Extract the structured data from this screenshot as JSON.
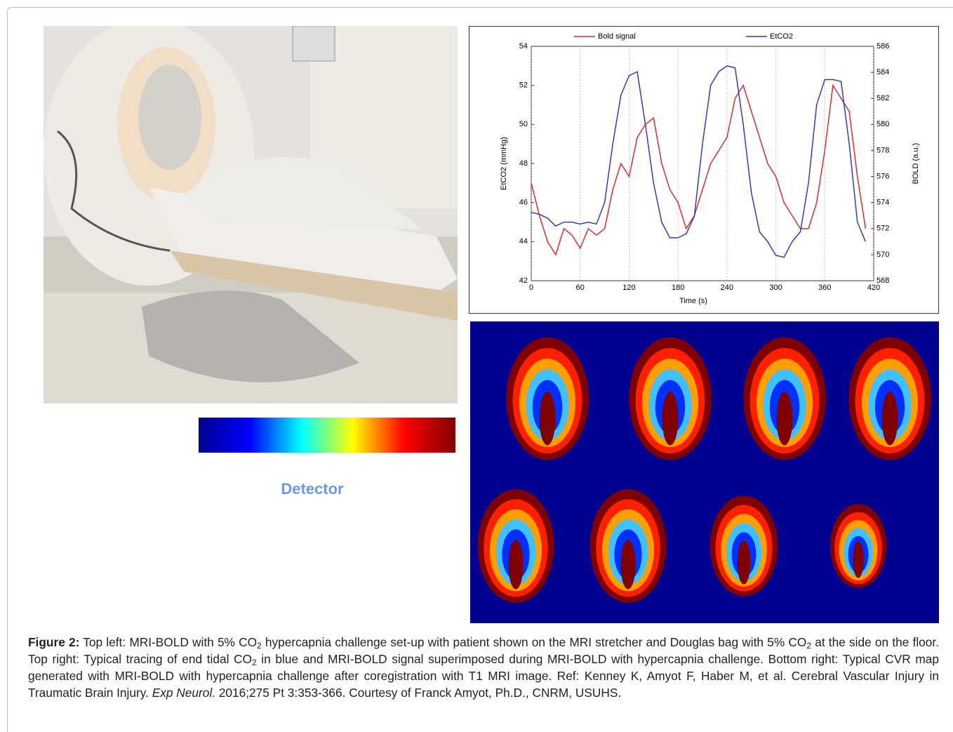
{
  "chart_data": {
    "type": "line",
    "legend_position": "top",
    "x_label": "Time (s)",
    "y_label": "EtCO2 (mmHg)",
    "y2_label": "BOLD (a.u.)",
    "x": [
      0,
      10,
      20,
      30,
      40,
      50,
      60,
      70,
      80,
      90,
      100,
      110,
      120,
      130,
      140,
      150,
      160,
      170,
      180,
      190,
      200,
      210,
      220,
      230,
      240,
      250,
      260,
      270,
      280,
      290,
      300,
      310,
      320,
      330,
      340,
      350,
      360,
      370,
      380,
      390,
      400,
      410
    ],
    "series": [
      {
        "name": "Bold signal",
        "color": "#d03030",
        "axis": "y2",
        "values": [
          575.5,
          573,
          571,
          570,
          572,
          571.5,
          570.5,
          572,
          571.5,
          572,
          575,
          577,
          576,
          579,
          580,
          580.5,
          577,
          575,
          574,
          572,
          573,
          575,
          577,
          578,
          579,
          582,
          583,
          581,
          579,
          577,
          576,
          574,
          573,
          572,
          572,
          574,
          578,
          583,
          582,
          581,
          576,
          572
        ]
      },
      {
        "name": "EtCO2",
        "color": "#3a3ab0",
        "values": [
          45.5,
          45.4,
          45.2,
          44.8,
          45,
          45,
          44.9,
          45,
          44.9,
          46,
          49,
          51.5,
          52.5,
          52.7,
          50,
          47,
          45,
          44.2,
          44.2,
          44.4,
          45.3,
          49,
          52,
          52.7,
          53,
          52.9,
          50,
          46.5,
          44.5,
          44,
          43.3,
          43.2,
          44,
          44.5,
          47,
          51,
          52.3,
          52.3,
          52.2,
          49,
          45,
          44
        ]
      }
    ],
    "xlim": [
      0,
      420
    ],
    "xticks": [
      0,
      60,
      120,
      180,
      240,
      300,
      360,
      420
    ],
    "xgrid": true,
    "ylim": [
      42,
      54
    ],
    "yticks": [
      42,
      44,
      46,
      48,
      50,
      52,
      54
    ],
    "y2lim": [
      568,
      586
    ],
    "y2ticks": [
      568,
      570,
      572,
      574,
      576,
      578,
      580,
      582,
      584,
      586
    ]
  },
  "colorbar_label": "Detector",
  "caption": {
    "label": "Figure 2:",
    "parts": [
      " Top left: MRI-BOLD with 5% CO",
      "2",
      " hypercapnia challenge set-up with patient shown on the MRI stretcher and Douglas bag with 5% CO",
      "2",
      " at the side on the floor. Top right: Typical tracing of end tidal CO",
      "2",
      " in blue and MRI-BOLD signal superimposed during MRI-BOLD with hypercapnia challenge. Bottom right: Typical CVR map generated with MRI-BOLD with hypercapnia challenge after coregistration with T1 MRI image. Ref: Kenney K, Amyot F, Haber M, et al. Cerebral Vascular Injury in Traumatic Brain Injury. ",
      "Exp Neurol.",
      " 2016;275 Pt 3:353-366. Courtesy of Franck Amyot, Ph.D., CNRM, USUHS."
    ]
  }
}
